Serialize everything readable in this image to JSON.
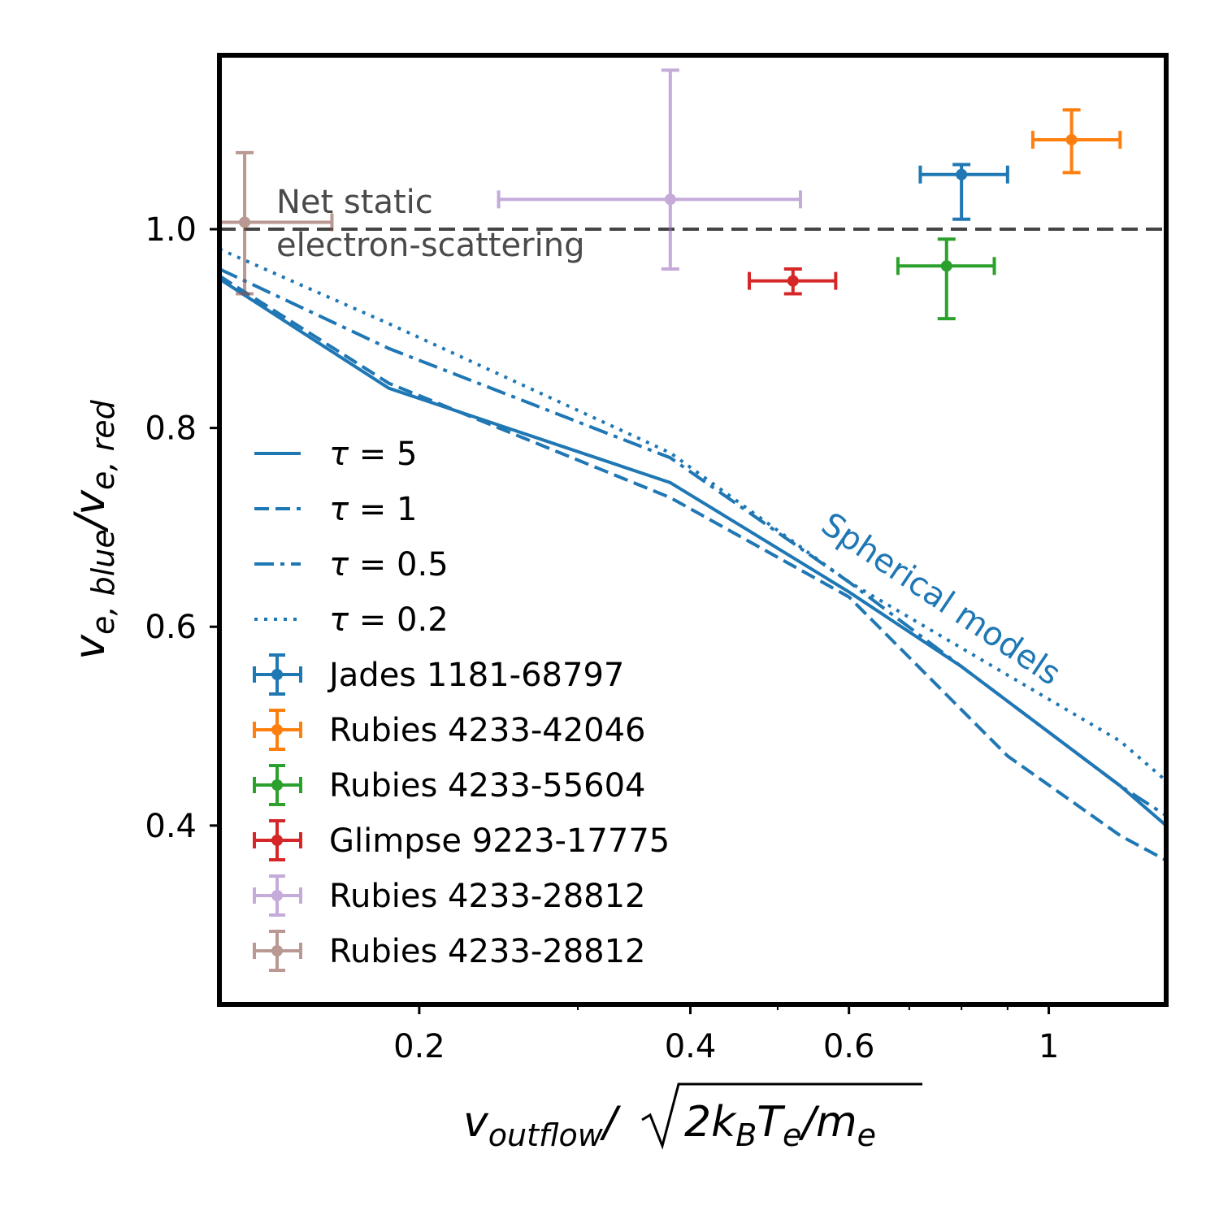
{
  "chart_data": {
    "type": "line",
    "xscale": "log",
    "xlim": [
      0.12,
      1.35
    ],
    "ylim": [
      0.22,
      1.175
    ],
    "xticks": [
      {
        "value": 0.2,
        "label": "0.2"
      },
      {
        "value": 0.4,
        "label": "0.4"
      },
      {
        "value": 0.6,
        "label": "0.6"
      },
      {
        "value": 1.0,
        "label": "1"
      }
    ],
    "xminorticks": [
      0.3,
      0.5,
      0.7,
      0.8,
      0.9
    ],
    "yticks": [
      {
        "value": 0.4,
        "label": "0.4"
      },
      {
        "value": 0.6,
        "label": "0.6"
      },
      {
        "value": 0.8,
        "label": "0.8"
      },
      {
        "value": 1.0,
        "label": "1.0"
      }
    ],
    "xlabel": {
      "prefix": "v",
      "prefix_sub": "outflow",
      "slash": "/",
      "root_coef": "2k",
      "root_sub1": "B",
      "root_var": "T",
      "root_sub2": "e",
      "root_slash": "/m",
      "root_sub3": "e"
    },
    "ylabel": {
      "base": "v",
      "sub1": "e, blue",
      "slash": "/v",
      "sub2": "e, red"
    },
    "reference_line": {
      "y": 1.0,
      "color": "#444444",
      "style": "dashed"
    },
    "annotations": {
      "static_line1": "Net static",
      "static_line2": "electron-scattering",
      "models": "Spherical models"
    },
    "series": [
      {
        "name": "tau5",
        "label_prefix": "τ = ",
        "label_value": "5",
        "style": "solid",
        "color": "#1f77b4",
        "x": [
          0.12,
          0.185,
          0.38,
          0.6,
          0.8,
          1.2,
          1.35
        ],
        "y": [
          0.95,
          0.84,
          0.745,
          0.635,
          0.56,
          0.44,
          0.4
        ]
      },
      {
        "name": "tau1",
        "label_prefix": "τ = ",
        "label_value": "1",
        "style": "dashed",
        "color": "#1f77b4",
        "x": [
          0.12,
          0.185,
          0.38,
          0.6,
          0.9,
          1.2,
          1.35
        ],
        "y": [
          0.953,
          0.845,
          0.73,
          0.63,
          0.47,
          0.39,
          0.365
        ]
      },
      {
        "name": "tau05",
        "label_prefix": "τ = ",
        "label_value": "0.5",
        "style": "dashdot",
        "color": "#1f77b4",
        "x": [
          0.12,
          0.185,
          0.38,
          0.6,
          1.2,
          1.35
        ],
        "y": [
          0.96,
          0.88,
          0.77,
          0.645,
          0.44,
          0.41
        ]
      },
      {
        "name": "tau02",
        "label_prefix": "τ = ",
        "label_value": "0.2",
        "style": "dotted",
        "color": "#1f77b4",
        "x": [
          0.12,
          0.185,
          0.38,
          0.6,
          1.2,
          1.35
        ],
        "y": [
          0.98,
          0.905,
          0.775,
          0.645,
          0.485,
          0.445
        ]
      }
    ],
    "points": [
      {
        "name": "Jades 1181-68797",
        "color": "#1f77b4",
        "alpha": 1.0,
        "x": 0.8,
        "y": 1.055,
        "xerr": [
          0.72,
          0.9
        ],
        "yerr": [
          1.01,
          1.065
        ]
      },
      {
        "name": "Rubies 4233-42046",
        "color": "#ff7f0e",
        "alpha": 1.0,
        "x": 1.06,
        "y": 1.09,
        "xerr": [
          0.96,
          1.2
        ],
        "yerr": [
          1.057,
          1.12
        ]
      },
      {
        "name": "Rubies 4233-55604",
        "color": "#2ca02c",
        "alpha": 1.0,
        "x": 0.77,
        "y": 0.963,
        "xerr": [
          0.68,
          0.87
        ],
        "yerr": [
          0.91,
          0.99
        ]
      },
      {
        "name": "Glimpse 9223-17775",
        "color": "#d62728",
        "alpha": 1.0,
        "x": 0.52,
        "y": 0.948,
        "xerr": [
          0.465,
          0.58
        ],
        "yerr": [
          0.935,
          0.96
        ]
      },
      {
        "name": "Rubies 4233-28812",
        "color": "#9467bd",
        "alpha": 0.55,
        "x": 0.38,
        "y": 1.03,
        "xerr": [
          0.245,
          0.53
        ],
        "yerr": [
          0.96,
          1.16
        ]
      },
      {
        "name": "Rubies 4233-28812",
        "color": "#8c564b",
        "alpha": 0.6,
        "x": 0.128,
        "y": 1.007,
        "xerr": [
          0.115,
          0.16
        ],
        "yerr": [
          0.935,
          1.077
        ]
      }
    ]
  }
}
